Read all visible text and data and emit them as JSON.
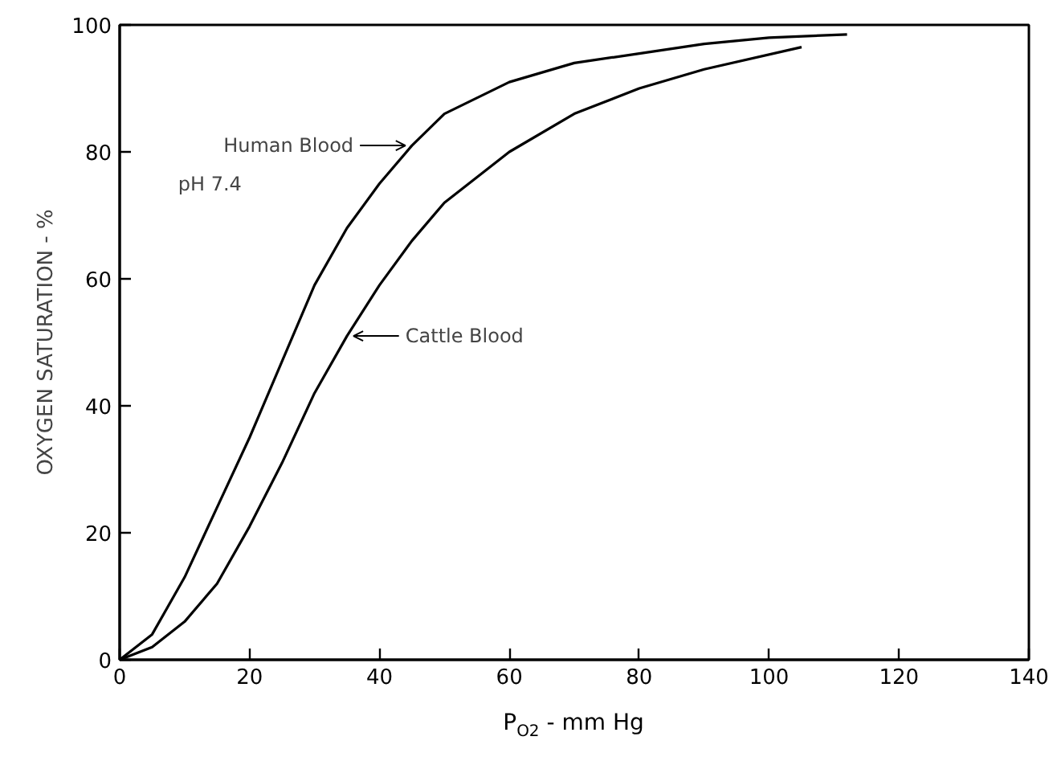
{
  "chart_data": {
    "type": "line",
    "xlabel": "P$_{O2}$ - mm Hg",
    "ylabel": "OXYGEN SATURATION - %",
    "series": [
      {
        "name": "Human Blood",
        "color": "#000000",
        "x": [
          0,
          5,
          10,
          15,
          20,
          25,
          30,
          35,
          40,
          45,
          50,
          60,
          70,
          80,
          90,
          100,
          112
        ],
        "values": [
          0,
          4,
          13,
          24,
          35,
          47,
          59,
          68,
          75,
          81,
          86,
          91,
          94,
          95.5,
          97,
          98,
          98.5
        ]
      },
      {
        "name": "Cattle Blood",
        "color": "#000000",
        "x": [
          0,
          5,
          10,
          15,
          20,
          25,
          30,
          35,
          40,
          45,
          50,
          60,
          70,
          80,
          90,
          105
        ],
        "values": [
          0,
          2,
          6,
          12,
          21,
          31,
          42,
          51,
          59,
          66,
          72,
          80,
          86,
          90,
          93,
          96.5
        ]
      }
    ],
    "annotations": [
      "pH 7.4"
    ],
    "xlim": [
      0,
      140
    ],
    "ylim": [
      0,
      100
    ],
    "xticks": [
      0,
      20,
      40,
      60,
      80,
      100,
      120,
      140
    ],
    "yticks": [
      0,
      20,
      40,
      60,
      80,
      100
    ],
    "grid": false,
    "marker": "none",
    "line_style": "solid"
  }
}
